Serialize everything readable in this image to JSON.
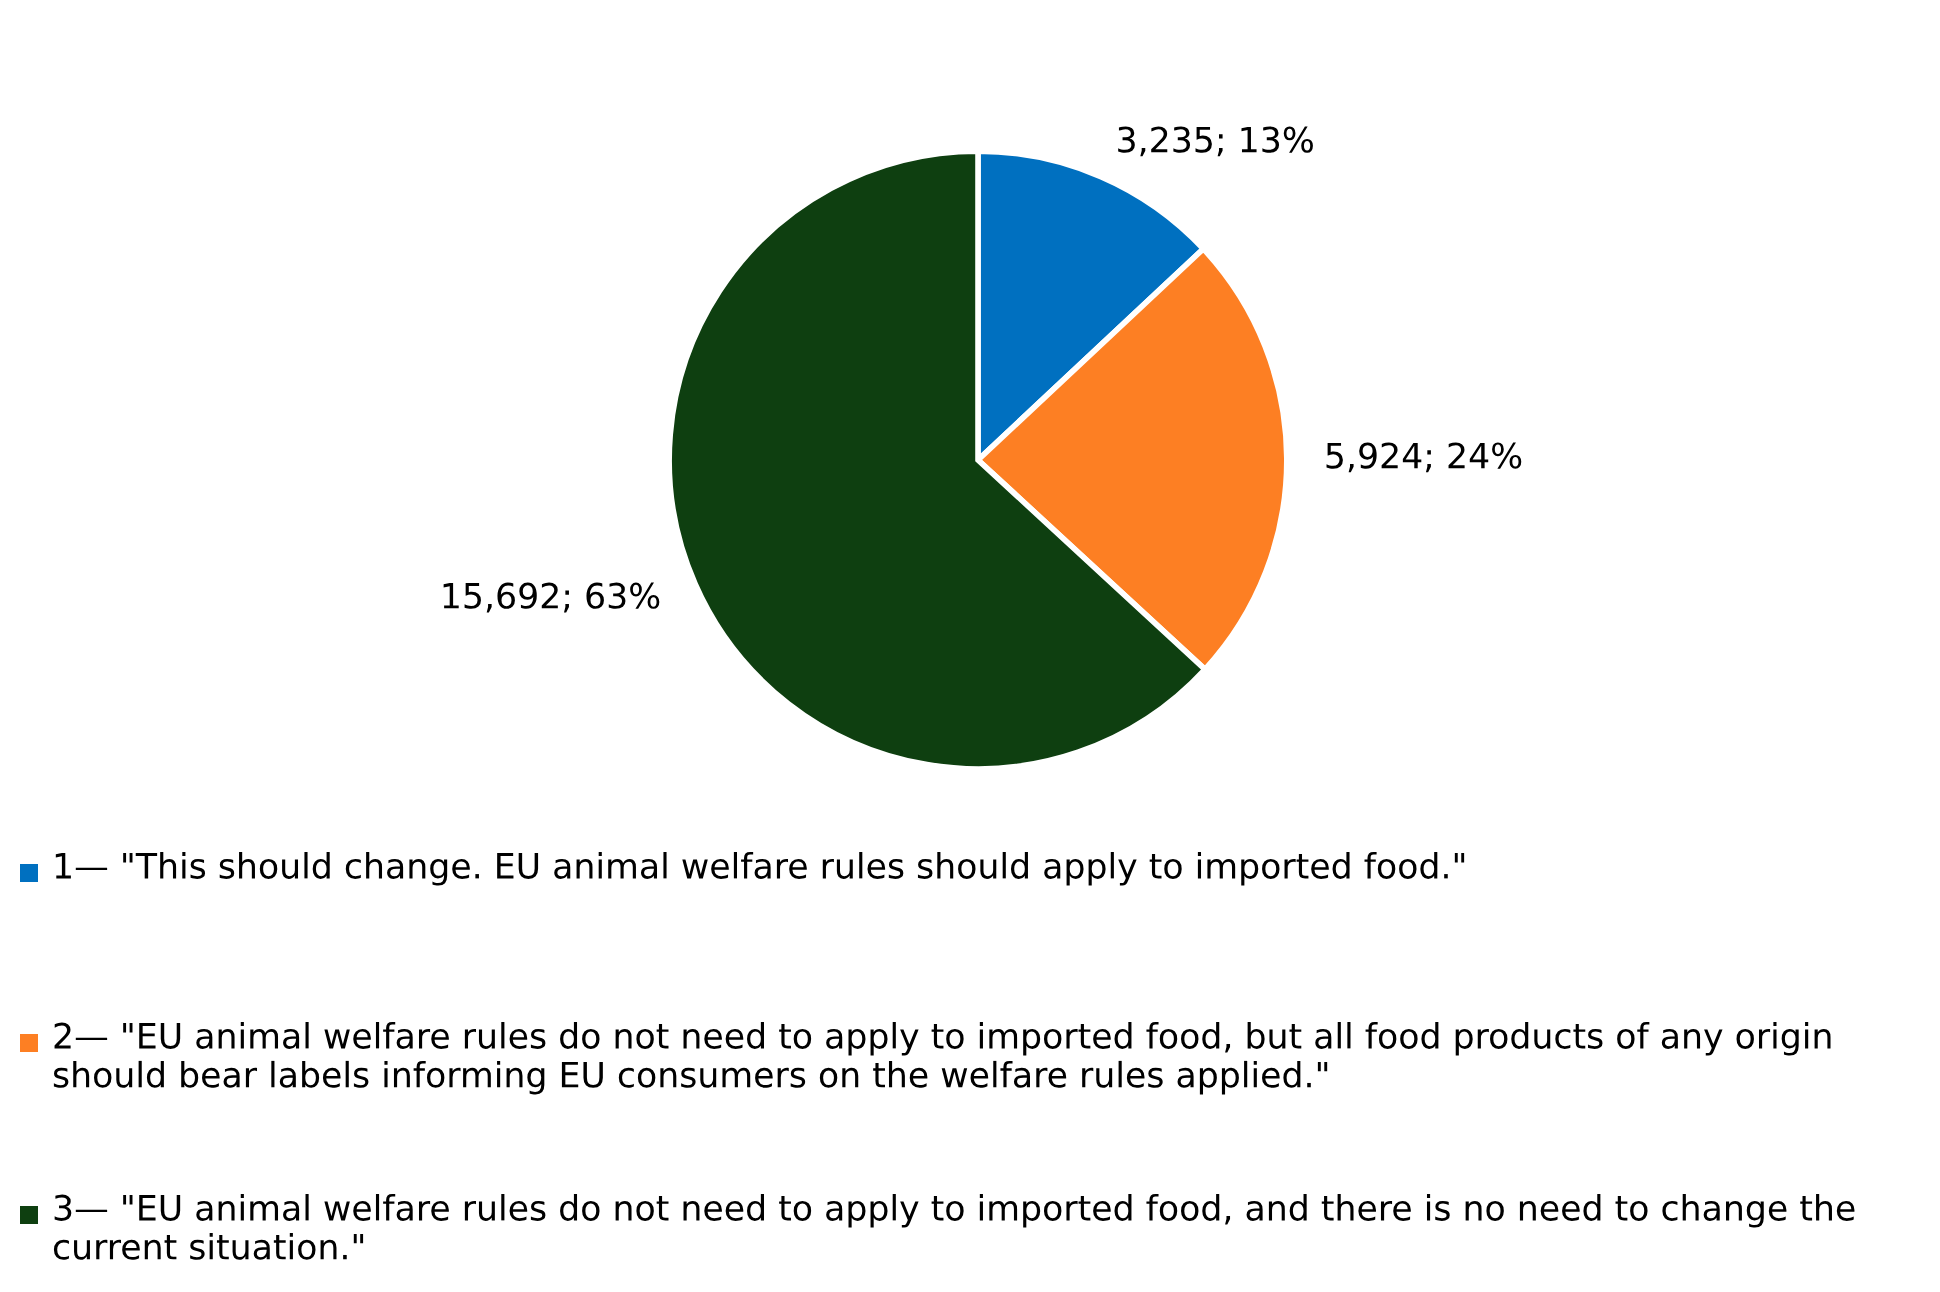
{
  "chart_data": {
    "type": "pie",
    "categories": [
      "1— \"This should change. EU animal welfare rules should apply to imported food.\"",
      "2— \"EU animal welfare rules do not need to apply to imported food, but all food products of any origin should bear labels informing EU consumers on the welfare rules applied.\"",
      "3— \"EU animal welfare rules do not need to apply to imported food, and there is no need to change the current situation.\""
    ],
    "values": [
      3235,
      5924,
      15692
    ],
    "colors": [
      "#0070c0",
      "#fd7f23",
      "#0e3f10"
    ],
    "value_labels": [
      "3,235; 13%",
      "5,924; 24%",
      "15,692; 63%"
    ],
    "legend": "bottom"
  }
}
